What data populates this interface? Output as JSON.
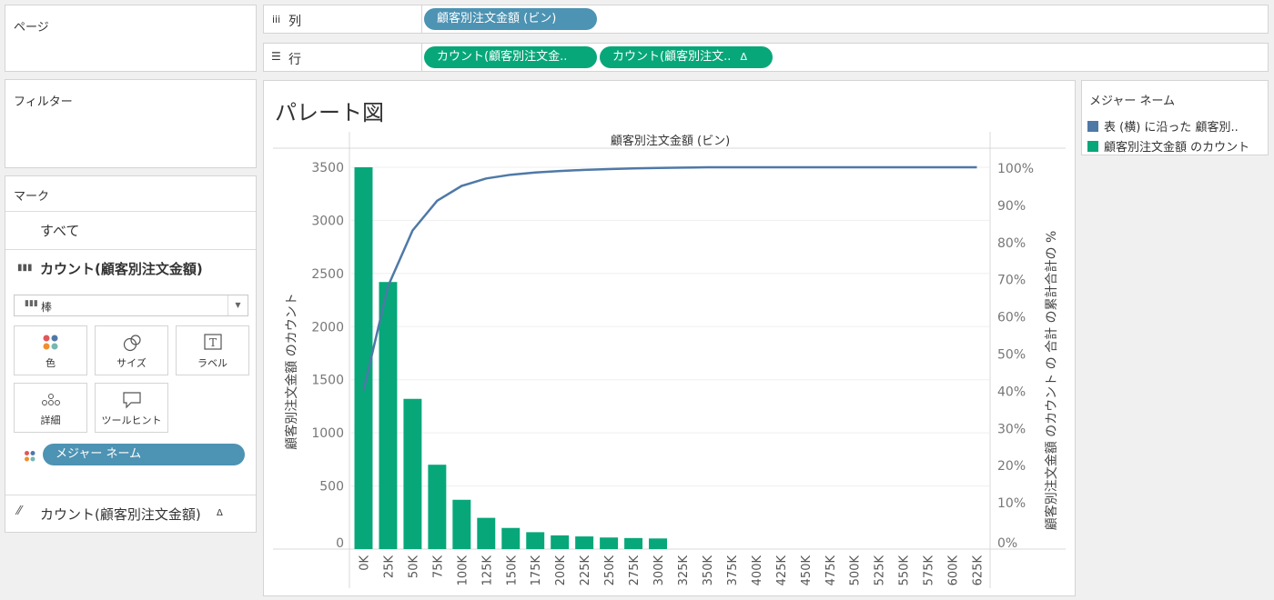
{
  "pages": {
    "title": "ページ"
  },
  "filters": {
    "title": "フィルター"
  },
  "marks": {
    "title": "マーク",
    "all_label": "すべて",
    "count_label": "カウント(顧客別注文金額)",
    "mark_type": "棒",
    "buttons": {
      "color": "色",
      "size": "サイズ",
      "label": "ラベル",
      "detail": "詳細",
      "tooltip": "ツールヒント"
    },
    "measure_pill": "メジャー ネーム",
    "line_label": "カウント(顧客別注文金額)",
    "delta": "Δ"
  },
  "columns": {
    "label": "列",
    "icon": "iii",
    "pill": "顧客別注文金額 (ビン)"
  },
  "rows": {
    "label": "行",
    "icon": "☰",
    "pill1": "カウント(顧客別注文金..",
    "pill2": "カウント(顧客別注文..",
    "delta": "Δ"
  },
  "viz": {
    "title": "パレート図"
  },
  "legend": {
    "title": "メジャー ネーム",
    "items": [
      {
        "label": "表 (横) に沿った 顧客別..",
        "color": "#4e79a7"
      },
      {
        "label": "顧客別注文金額 のカウント",
        "color": "#07a77a"
      }
    ]
  },
  "colors": {
    "bar": "#07a77a",
    "line": "#4e79a7",
    "pill_blue": "#4d93b3"
  },
  "chart_data": {
    "type": "bar",
    "title": "",
    "header": "顧客別注文金額 (ビン)",
    "ylabel": "顧客別注文金額 のカウント",
    "y2label": "顧客別注文金額 のカウント の 合計 の累計合計の %",
    "categories": [
      "0K",
      "25K",
      "50K",
      "75K",
      "100K",
      "125K",
      "150K",
      "175K",
      "200K",
      "225K",
      "250K",
      "275K",
      "300K",
      "325K",
      "350K",
      "375K",
      "400K",
      "425K",
      "450K",
      "475K",
      "500K",
      "525K",
      "550K",
      "575K",
      "600K",
      "625K"
    ],
    "ylim": [
      0,
      3500
    ],
    "yticks": [
      0,
      500,
      1000,
      1500,
      2000,
      2500,
      3000,
      3500
    ],
    "y2lim": [
      0,
      100
    ],
    "y2ticks": [
      "0%",
      "10%",
      "20%",
      "30%",
      "40%",
      "50%",
      "60%",
      "70%",
      "80%",
      "90%",
      "100%"
    ],
    "series": [
      {
        "name": "顧客別注文金額 のカウント",
        "kind": "bar",
        "values": [
          3500,
          2420,
          1320,
          700,
          370,
          200,
          105,
          65,
          35,
          25,
          15,
          10,
          6,
          0,
          0,
          0,
          0,
          0,
          0,
          0,
          0,
          0,
          0,
          0,
          0,
          0
        ]
      },
      {
        "name": "表 (横) に沿った 顧客別..",
        "kind": "line",
        "values": [
          40,
          68,
          83,
          91,
          95,
          97,
          98,
          98.6,
          99,
          99.3,
          99.5,
          99.7,
          99.8,
          99.9,
          100,
          100,
          100,
          100,
          100,
          100,
          100,
          100,
          100,
          100,
          100,
          100
        ]
      }
    ],
    "grid": true
  }
}
